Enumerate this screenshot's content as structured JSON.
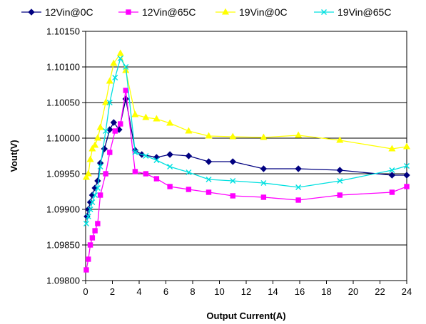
{
  "chart_data": {
    "type": "line",
    "xlabel": "Output Current(A)",
    "ylabel": "Vout(V)",
    "xlim": [
      0,
      24
    ],
    "ylim": [
      1.098,
      1.1015
    ],
    "xticks": [
      "0",
      "2",
      "4",
      "6",
      "8",
      "10",
      "12",
      "14",
      "16",
      "18",
      "20",
      "22",
      "24"
    ],
    "yticks": [
      "1.09800",
      "1.09850",
      "1.09900",
      "1.09950",
      "1.10000",
      "1.10050",
      "1.10100",
      "1.10150"
    ],
    "grid": "horizontal",
    "legend_position": "top",
    "series": [
      {
        "name": "12Vin@0C",
        "color": "#000080",
        "marker": "diamond",
        "points": [
          [
            0.1,
            1.0989
          ],
          [
            0.2,
            1.099
          ],
          [
            0.35,
            1.0991
          ],
          [
            0.5,
            1.0992
          ],
          [
            0.7,
            1.0993
          ],
          [
            0.9,
            1.0994
          ],
          [
            1.1,
            1.09965
          ],
          [
            1.4,
            1.09985
          ],
          [
            1.8,
            1.10012
          ],
          [
            2.1,
            1.10022
          ],
          [
            2.5,
            1.10012
          ],
          [
            3.0,
            1.10055
          ],
          [
            3.7,
            1.09983
          ],
          [
            4.2,
            1.09977
          ],
          [
            5.3,
            1.09973
          ],
          [
            6.3,
            1.09977
          ],
          [
            7.7,
            1.09975
          ],
          [
            9.2,
            1.09967
          ],
          [
            11.0,
            1.09967
          ],
          [
            13.3,
            1.09957
          ],
          [
            15.9,
            1.09957
          ],
          [
            19.0,
            1.09955
          ],
          [
            22.9,
            1.09948
          ],
          [
            24.0,
            1.09948
          ]
        ]
      },
      {
        "name": "12Vin@65C",
        "color": "#ff00ff",
        "marker": "square",
        "points": [
          [
            0.05,
            1.09815
          ],
          [
            0.2,
            1.0983
          ],
          [
            0.35,
            1.0985
          ],
          [
            0.5,
            1.0986
          ],
          [
            0.7,
            1.0987
          ],
          [
            0.9,
            1.0988
          ],
          [
            1.1,
            1.0992
          ],
          [
            1.5,
            1.0995
          ],
          [
            1.8,
            1.0998
          ],
          [
            2.2,
            1.1001
          ],
          [
            2.6,
            1.1002
          ],
          [
            3.0,
            1.10067
          ],
          [
            3.7,
            1.09953
          ],
          [
            4.5,
            1.0995
          ],
          [
            5.3,
            1.09943
          ],
          [
            6.3,
            1.09932
          ],
          [
            7.7,
            1.09928
          ],
          [
            9.2,
            1.09924
          ],
          [
            11.0,
            1.09919
          ],
          [
            13.3,
            1.09917
          ],
          [
            15.9,
            1.09913
          ],
          [
            19.0,
            1.0992
          ],
          [
            22.9,
            1.09924
          ],
          [
            24.0,
            1.09932
          ]
        ]
      },
      {
        "name": "19Vin@0C",
        "color": "#ffff00",
        "marker": "triangle",
        "points": [
          [
            0.05,
            1.09945
          ],
          [
            0.2,
            1.0995
          ],
          [
            0.35,
            1.0997
          ],
          [
            0.5,
            1.09985
          ],
          [
            0.7,
            1.0999
          ],
          [
            0.9,
            1.1
          ],
          [
            1.1,
            1.10015
          ],
          [
            1.5,
            1.1005
          ],
          [
            1.8,
            1.1008
          ],
          [
            2.1,
            1.10105
          ],
          [
            2.6,
            1.10119
          ],
          [
            3.0,
            1.10095
          ],
          [
            3.7,
            1.10033
          ],
          [
            4.5,
            1.10029
          ],
          [
            5.3,
            1.10027
          ],
          [
            6.3,
            1.10021
          ],
          [
            7.7,
            1.1001
          ],
          [
            9.2,
            1.10003
          ],
          [
            11.0,
            1.10002
          ],
          [
            13.3,
            1.10001
          ],
          [
            15.9,
            1.10004
          ],
          [
            19.0,
            1.09997
          ],
          [
            22.9,
            1.09985
          ],
          [
            24.0,
            1.09988
          ]
        ]
      },
      {
        "name": "19Vin@65C",
        "color": "#00e0e0",
        "marker": "x",
        "points": [
          [
            0.05,
            1.0988
          ],
          [
            0.2,
            1.0989
          ],
          [
            0.35,
            1.099
          ],
          [
            0.5,
            1.0991
          ],
          [
            0.7,
            1.0992
          ],
          [
            0.9,
            1.0993
          ],
          [
            1.1,
            1.0996
          ],
          [
            1.5,
            1.1001
          ],
          [
            1.8,
            1.1005
          ],
          [
            2.2,
            1.10085
          ],
          [
            2.6,
            1.10112
          ],
          [
            3.0,
            1.101
          ],
          [
            3.7,
            1.0998
          ],
          [
            4.5,
            1.09975
          ],
          [
            5.3,
            1.09969
          ],
          [
            6.3,
            1.0996
          ],
          [
            7.7,
            1.09952
          ],
          [
            9.2,
            1.09942
          ],
          [
            11.0,
            1.0994
          ],
          [
            13.3,
            1.09937
          ],
          [
            15.9,
            1.09931
          ],
          [
            19.0,
            1.0994
          ],
          [
            22.9,
            1.09955
          ],
          [
            24.0,
            1.09961
          ]
        ]
      }
    ]
  }
}
